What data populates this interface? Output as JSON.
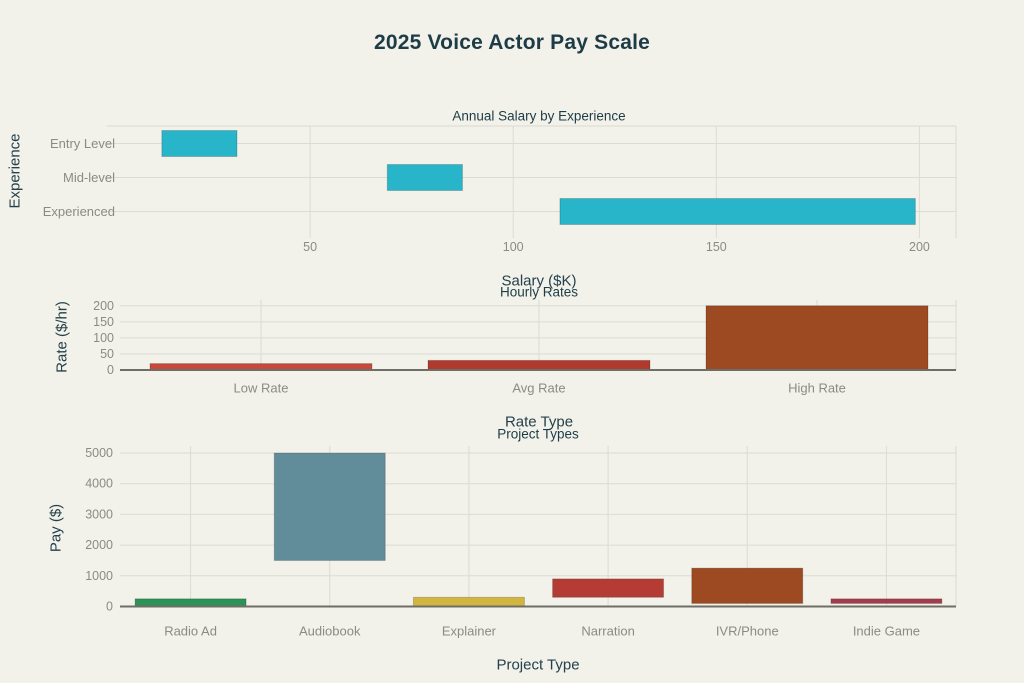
{
  "figure": {
    "title": "2025 Voice Actor Pay Scale",
    "background_color": "#f2f1ea",
    "title_color": "#1d3c46",
    "grid_color": "#dcdcd2",
    "axis_line_color": "#6e6e66",
    "tick_text_color": "#8b8b83"
  },
  "chart_data": [
    {
      "type": "bar",
      "orientation": "horizontal_range",
      "title": "Annual Salary by Experience",
      "xlabel": "Salary ($K)",
      "ylabel": "Experience",
      "categories": [
        "Entry Level",
        "Mid-level",
        "Experienced"
      ],
      "ranges": [
        [
          13.5,
          32
        ],
        [
          69,
          87.5
        ],
        [
          111.5,
          199
        ]
      ],
      "xlim": [
        0,
        209
      ],
      "xticks": [
        50,
        100,
        150,
        200
      ],
      "bar_color": "#28b5c9",
      "grid": true,
      "legend": "none"
    },
    {
      "type": "bar",
      "orientation": "vertical",
      "title": "Hourly Rates",
      "xlabel": "Rate Type",
      "ylabel": "Rate ($/hr)",
      "categories": [
        "Low Rate",
        "Avg Rate",
        "High Rate"
      ],
      "values": [
        20,
        30,
        200
      ],
      "ylim": [
        0,
        218
      ],
      "yticks": [
        0,
        50,
        100,
        150,
        200
      ],
      "bar_colors": [
        "#c8483c",
        "#b03a2e",
        "#9d4a23"
      ],
      "grid": true,
      "legend": "none"
    },
    {
      "type": "bar",
      "orientation": "vertical_range",
      "title": "Project Types",
      "xlabel": "Project Type",
      "ylabel": "Pay ($)",
      "categories": [
        "Radio Ad",
        "Audiobook",
        "Explainer",
        "Narration",
        "IVR/Phone",
        "Indie Game"
      ],
      "ranges": [
        [
          0,
          250
        ],
        [
          1500,
          5000
        ],
        [
          0,
          300
        ],
        [
          300,
          900
        ],
        [
          100,
          1250
        ],
        [
          100,
          250
        ]
      ],
      "ylim": [
        0,
        5230
      ],
      "yticks": [
        0,
        1000,
        2000,
        3000,
        4000,
        5000
      ],
      "bar_colors": [
        "#2c9257",
        "#608d99",
        "#d2b441",
        "#b43c34",
        "#9d4a23",
        "#a43c4e"
      ],
      "grid": true,
      "legend": "none"
    }
  ]
}
